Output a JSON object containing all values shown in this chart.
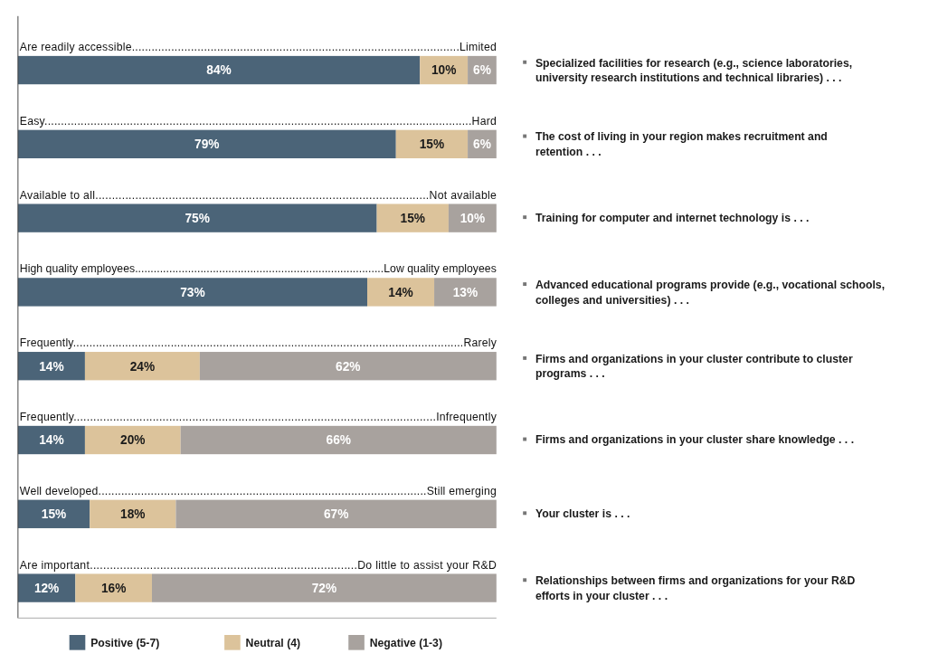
{
  "chart_data": {
    "type": "bar",
    "orientation": "horizontal",
    "stacked": true,
    "legend": "bottom",
    "categories": [
      "Are readily accessible....................................................................................................Limited",
      "Easy..................................................................................................................................Hard",
      "Available to all....................................................................................................Not available",
      "High quality employees................................................................................Low quality employees",
      "Frequently........................................................................................................................Rarely",
      "Frequently..............................................................................................................Infrequently",
      "Well developed....................................................................................................Still emerging",
      "Are important................................................................................Do little to assist your R&D"
    ],
    "series": [
      {
        "name": "Positive (5-7)",
        "color": "#4b6478",
        "values": [
          84,
          79,
          75,
          73,
          14,
          14,
          15,
          12
        ],
        "value_labels": [
          "84%",
          "79%",
          "75%",
          "73%",
          "14%",
          "14%",
          "15%",
          "12%"
        ]
      },
      {
        "name": "Neutral (4)",
        "color": "#dcc39b",
        "values": [
          10,
          15,
          15,
          14,
          24,
          20,
          18,
          16
        ],
        "value_labels": [
          "10%",
          "15%",
          "15%",
          "14%",
          "24%",
          "20%",
          "18%",
          "16%"
        ]
      },
      {
        "name": "Negative (1-3)",
        "color": "#a8a29e",
        "values": [
          6,
          6,
          10,
          13,
          62,
          66,
          67,
          72
        ],
        "value_labels": [
          "6%",
          "6%",
          "10%",
          "13%",
          "62%",
          "66%",
          "67%",
          "72%"
        ]
      }
    ],
    "annotations": [
      "Specialized facilities for research (e.g., science laboratories, university research institutions and technical libraries) . . .",
      "The cost of living in your region makes recruitment and retention . . .",
      "Training for computer and internet technology is . . .",
      "Advanced educational programs provide (e.g., vocational schools, colleges and universities) . . .",
      "Firms and organizations in your cluster contribute to cluster programs . . .",
      "Firms and organizations in your cluster share knowledge . . .",
      "Your cluster is . . .",
      "Relationships between firms and organizations for your R&D efforts in your cluster . . ."
    ]
  }
}
